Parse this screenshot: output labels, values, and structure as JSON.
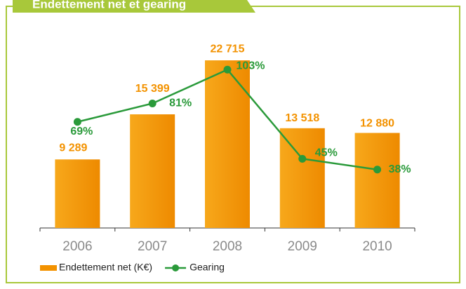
{
  "chart_data": {
    "type": "bar",
    "title": "Endettement net et gearing",
    "categories": [
      "2006",
      "2007",
      "2008",
      "2009",
      "2010"
    ],
    "ylim": [
      0,
      25000
    ],
    "y2lim": [
      0,
      120
    ],
    "series": [
      {
        "name": "Endettement net (K€)",
        "type": "bar",
        "color": "#f39200",
        "values": [
          9289,
          15399,
          22715,
          13518,
          12880
        ],
        "value_labels": [
          "9 289",
          "15 399",
          "22 715",
          "13 518",
          "12 880"
        ]
      },
      {
        "name": "Gearing",
        "type": "line",
        "axis": "y2",
        "color": "#2a9a3a",
        "values": [
          69,
          81,
          103,
          45,
          38
        ],
        "value_labels": [
          "69%",
          "81%",
          "103%",
          "45%",
          "38%"
        ]
      }
    ]
  }
}
